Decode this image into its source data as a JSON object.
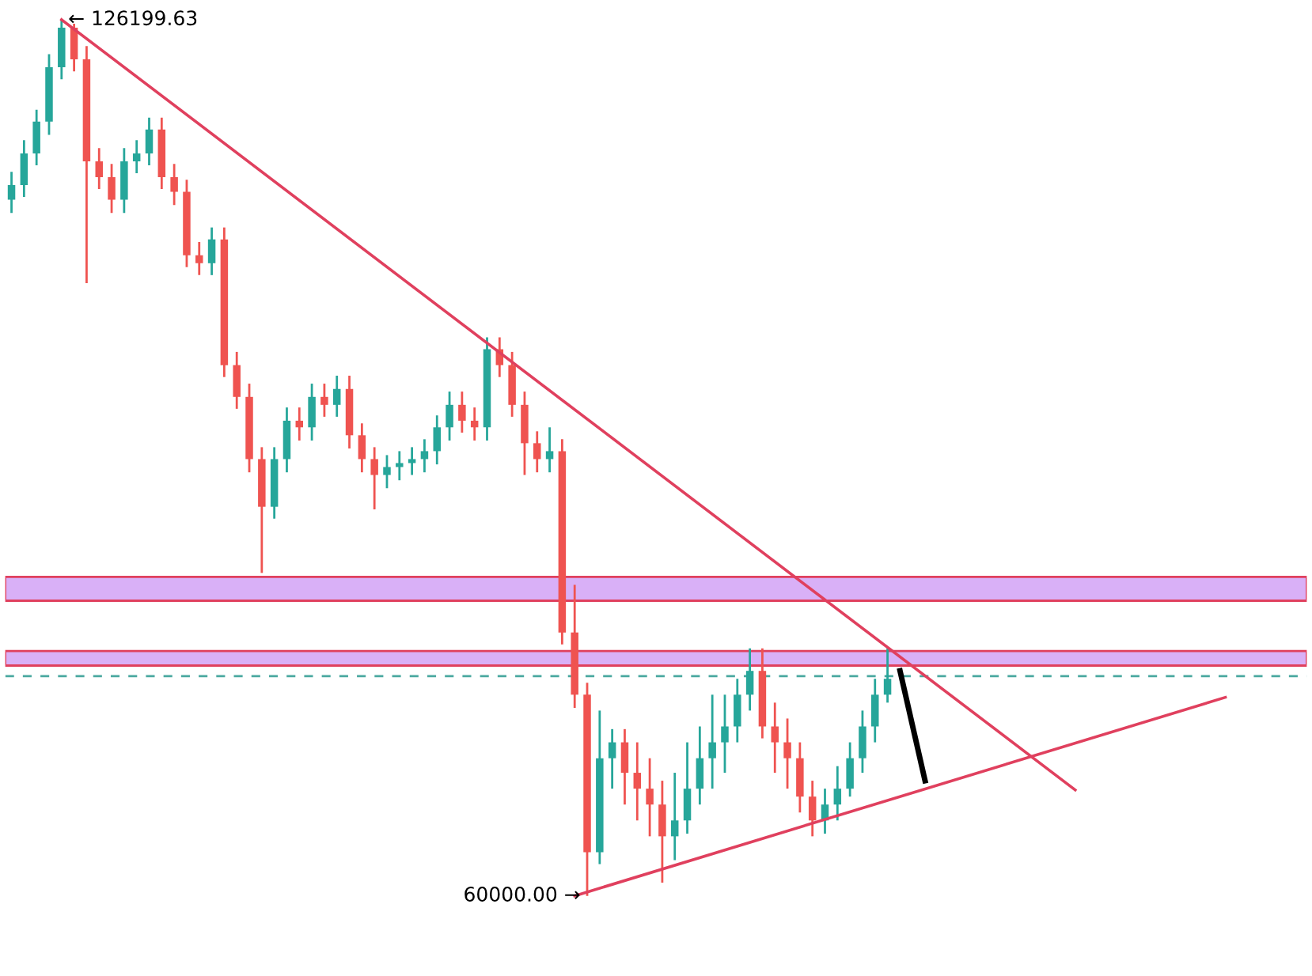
{
  "chart_data": {
    "type": "candlestick",
    "tick_labels": false,
    "colors": [
      "#26a69a",
      "#26a69a",
      "#26a69a",
      "#26a69a",
      "#26a69a",
      "#ef5350",
      "#ef5350",
      "#ef5350",
      "#ef5350",
      "#26a69a",
      "#26a69a",
      "#26a69a",
      "#ef5350",
      "#ef5350",
      "#ef5350",
      "#ef5350",
      "#26a69a",
      "#ef5350",
      "#ef5350",
      "#ef5350",
      "#ef5350",
      "#26a69a",
      "#26a69a",
      "#ef5350",
      "#26a69a",
      "#ef5350",
      "#26a69a",
      "#ef5350",
      "#ef5350",
      "#ef5350",
      "#26a69a",
      "#26a69a",
      "#26a69a",
      "#26a69a",
      "#26a69a",
      "#26a69a",
      "#ef5350",
      "#ef5350",
      "#26a69a",
      "#ef5350",
      "#ef5350",
      "#ef5350",
      "#ef5350",
      "#26a69a",
      "#ef5350",
      "#ef5350",
      "#ef5350",
      "#26a69a",
      "#26a69a",
      "#ef5350",
      "#ef5350",
      "#ef5350",
      "#ef5350",
      "#26a69a",
      "#26a69a",
      "#26a69a",
      "#26a69a",
      "#26a69a",
      "#26a69a",
      "#26a69a",
      "#ef5350",
      "#ef5350",
      "#ef5350",
      "#ef5350",
      "#ef5350",
      "#26a69a",
      "#26a69a",
      "#26a69a",
      "#26a69a",
      "#26a69a",
      "#26a69a",
      null,
      null,
      null,
      null,
      null,
      null,
      null,
      null,
      null,
      null,
      null,
      null,
      null,
      null,
      null,
      null,
      null,
      null,
      null,
      null,
      null,
      null,
      null,
      null,
      null,
      null,
      null
    ],
    "categories": [
      null,
      null,
      null,
      null,
      null,
      null,
      null,
      null,
      null,
      null,
      null,
      null,
      null,
      null,
      null,
      null,
      null,
      null,
      null,
      null,
      null,
      null,
      null,
      null,
      null,
      null,
      null,
      null,
      null,
      null,
      null,
      null,
      null,
      null,
      null,
      null,
      null,
      null,
      null,
      null,
      null,
      null,
      null,
      null,
      null,
      null,
      null,
      null,
      null,
      null,
      null,
      null,
      null,
      null,
      null,
      null,
      null,
      null,
      null,
      null,
      null,
      null,
      null,
      null,
      null,
      null,
      null,
      null,
      null,
      null,
      null,
      null,
      null,
      null,
      null,
      null,
      null,
      null,
      null,
      null,
      null,
      null,
      null,
      null,
      null,
      null,
      null,
      null,
      null,
      null,
      null,
      null,
      null,
      null,
      null,
      null,
      null,
      null
    ],
    "ohlc": [
      [
        112600,
        114700,
        111600,
        113700
      ],
      [
        113700,
        117100,
        112800,
        116100
      ],
      [
        116100,
        119400,
        115200,
        118500
      ],
      [
        118500,
        123600,
        117500,
        122600
      ],
      [
        122600,
        126199.63,
        121700,
        125600
      ],
      [
        125600,
        125900,
        122300,
        123200
      ],
      [
        123200,
        124200,
        106300,
        115500
      ],
      [
        115500,
        116500,
        113400,
        114300
      ],
      [
        114300,
        115300,
        111600,
        112600
      ],
      [
        112600,
        116500,
        111600,
        115500
      ],
      [
        115500,
        117100,
        114600,
        116100
      ],
      [
        116100,
        118800,
        115200,
        117900
      ],
      [
        117900,
        118800,
        113400,
        114300
      ],
      [
        114300,
        115300,
        112200,
        113200
      ],
      [
        113200,
        114100,
        107500,
        108400
      ],
      [
        108400,
        109400,
        106900,
        107800
      ],
      [
        107800,
        110500,
        106900,
        109600
      ],
      [
        109600,
        110500,
        99200,
        100100
      ],
      [
        100100,
        101100,
        96800,
        97700
      ],
      [
        97700,
        98700,
        92000,
        93000
      ],
      [
        93000,
        93900,
        84400,
        89400
      ],
      [
        89400,
        93900,
        88500,
        93000
      ],
      [
        93000,
        96900,
        92000,
        95900
      ],
      [
        95900,
        96900,
        94400,
        95400
      ],
      [
        95400,
        98700,
        94400,
        97700
      ],
      [
        97700,
        98700,
        96200,
        97100
      ],
      [
        97100,
        99300,
        96200,
        98300
      ],
      [
        98300,
        99300,
        93800,
        94800
      ],
      [
        94800,
        95700,
        92000,
        93000
      ],
      [
        93000,
        93900,
        89200,
        91800
      ],
      [
        91800,
        93300,
        90800,
        92400
      ],
      [
        92400,
        93600,
        91400,
        92700
      ],
      [
        92700,
        93900,
        91800,
        93000
      ],
      [
        93000,
        94500,
        92000,
        93600
      ],
      [
        93600,
        96300,
        92600,
        95400
      ],
      [
        95400,
        98100,
        94400,
        97100
      ],
      [
        97100,
        98100,
        95000,
        95900
      ],
      [
        95900,
        96900,
        94400,
        95400
      ],
      [
        95400,
        102200,
        94400,
        101300
      ],
      [
        101300,
        102200,
        99200,
        100100
      ],
      [
        100100,
        101100,
        96200,
        97100
      ],
      [
        97100,
        98100,
        91800,
        94200
      ],
      [
        94200,
        95100,
        92000,
        93000
      ],
      [
        93000,
        95400,
        92000,
        93600
      ],
      [
        93600,
        94500,
        79000,
        79900
      ],
      [
        79900,
        83500,
        74200,
        75200
      ],
      [
        75200,
        76100,
        60000,
        63300
      ],
      [
        63300,
        74000,
        62400,
        70400
      ],
      [
        70400,
        72600,
        68100,
        71600
      ],
      [
        71600,
        72600,
        66900,
        69300
      ],
      [
        69300,
        71600,
        65700,
        68100
      ],
      [
        68100,
        70400,
        64500,
        66900
      ],
      [
        66900,
        68700,
        61000,
        64500
      ],
      [
        64500,
        69300,
        62700,
        65700
      ],
      [
        65700,
        71600,
        64700,
        68100
      ],
      [
        68100,
        72800,
        66900,
        70400
      ],
      [
        70400,
        75200,
        68100,
        71600
      ],
      [
        71600,
        75200,
        69300,
        72800
      ],
      [
        72800,
        76400,
        71600,
        75200
      ],
      [
        75200,
        78700,
        74000,
        77000
      ],
      [
        77000,
        78700,
        71900,
        72800
      ],
      [
        72800,
        74600,
        69300,
        71600
      ],
      [
        71600,
        73400,
        68100,
        70400
      ],
      [
        70400,
        71600,
        66300,
        67500
      ],
      [
        67500,
        68700,
        64500,
        65700
      ],
      [
        65700,
        68100,
        64700,
        66900
      ],
      [
        66900,
        69800,
        65700,
        68100
      ],
      [
        68100,
        71600,
        67500,
        70400
      ],
      [
        70400,
        74000,
        69300,
        72800
      ],
      [
        72800,
        76400,
        71600,
        75200
      ],
      [
        75200,
        78700,
        74600,
        76400
      ],
      null,
      null,
      null,
      null,
      null,
      null,
      null,
      null,
      null,
      null,
      null,
      null,
      null,
      null,
      null,
      null,
      null,
      null,
      null,
      null,
      null,
      null,
      null,
      null,
      null,
      null,
      null
    ],
    "series": [
      {
        "type": "line",
        "color": "#e0405e",
        "values": [
          null,
          null,
          null,
          null,
          126200,
          null,
          null,
          null,
          null,
          null,
          null,
          null,
          null,
          null,
          null,
          null,
          null,
          null,
          null,
          null,
          null,
          null,
          null,
          null,
          null,
          null,
          null,
          null,
          null,
          null,
          null,
          null,
          null,
          null,
          null,
          null,
          null,
          null,
          null,
          null,
          null,
          null,
          null,
          null,
          null,
          null,
          null,
          null,
          null,
          null,
          null,
          null,
          null,
          null,
          null,
          null,
          null,
          null,
          null,
          null,
          null,
          null,
          null,
          null,
          null,
          null,
          null,
          null,
          null,
          null,
          null,
          null,
          null,
          null,
          null,
          null,
          null,
          null,
          null,
          null,
          null,
          null,
          null,
          null,
          null,
          68000,
          null,
          null,
          null,
          null,
          null,
          null,
          null,
          null,
          null,
          null,
          null,
          null
        ]
      },
      {
        "type": "line",
        "color": "#e0405e",
        "values": [
          null,
          null,
          null,
          null,
          null,
          null,
          null,
          null,
          null,
          null,
          null,
          null,
          null,
          null,
          null,
          null,
          null,
          null,
          null,
          null,
          null,
          null,
          null,
          null,
          null,
          null,
          null,
          null,
          null,
          null,
          null,
          null,
          null,
          null,
          null,
          null,
          null,
          null,
          null,
          null,
          null,
          null,
          null,
          null,
          null,
          60000,
          null,
          null,
          null,
          null,
          null,
          null,
          null,
          null,
          null,
          null,
          null,
          null,
          null,
          null,
          null,
          null,
          null,
          null,
          null,
          null,
          null,
          null,
          null,
          null,
          null,
          null,
          null,
          null,
          null,
          null,
          null,
          null,
          null,
          null,
          null,
          null,
          null,
          null,
          null,
          null,
          null,
          null,
          null,
          null,
          null,
          null,
          null,
          null,
          null,
          null,
          null,
          75000
        ]
      },
      {
        "type": "line",
        "color": "#000000",
        "values": [
          null,
          null,
          null,
          null,
          null,
          null,
          null,
          null,
          null,
          null,
          null,
          null,
          null,
          null,
          null,
          null,
          null,
          null,
          null,
          null,
          null,
          null,
          null,
          null,
          null,
          null,
          null,
          null,
          null,
          null,
          null,
          null,
          null,
          null,
          null,
          null,
          null,
          null,
          null,
          null,
          null,
          null,
          null,
          null,
          null,
          null,
          null,
          null,
          null,
          null,
          null,
          null,
          null,
          null,
          null,
          null,
          null,
          null,
          null,
          null,
          null,
          null,
          null,
          null,
          null,
          null,
          null,
          null,
          null,
          null,
          null,
          77000,
          null,
          68700,
          null,
          null,
          null,
          null,
          null,
          null,
          null,
          null,
          null,
          null,
          null,
          null,
          null,
          null,
          null,
          null,
          null,
          null,
          null,
          null,
          null,
          null,
          null,
          null
        ]
      }
    ],
    "bands": [
      {
        "axis": "y",
        "from": 82300,
        "to": 84100,
        "color": "#d9b0f7"
      },
      {
        "axis": "y",
        "from": 77400,
        "to": 78500,
        "color": "#d9b0f7"
      }
    ],
    "ref_lines": [
      {
        "axis": "y",
        "value": 76600,
        "color": "#4aa8a0",
        "line_style": "dashed"
      }
    ],
    "annotations": [
      "← 126199.63",
      "60000.00 →"
    ]
  }
}
